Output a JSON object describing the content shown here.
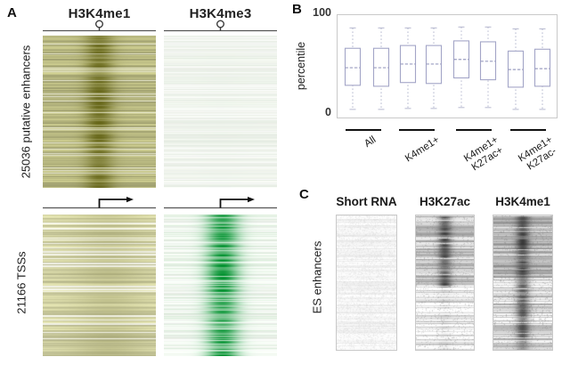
{
  "figure": {
    "background": "#ffffff"
  },
  "panels": {
    "a": {
      "label": "A",
      "columns": [
        {
          "title": "H3K4me1"
        },
        {
          "title": "H3K4me3"
        }
      ],
      "rows": [
        {
          "label": "25036 putative enhancers"
        },
        {
          "label": "21166 TSSs"
        }
      ],
      "marker_icons": [
        "center-pin-icon",
        "tss-arrow-icon"
      ],
      "heatmaps": [
        {
          "name": "h3k4me1-enhancers",
          "seed": 11,
          "bg": "#b7b780",
          "row_noise": 0.16,
          "streak": "#f6f6e8",
          "streak_prob": 0.13,
          "streak_thick": 1,
          "band_color": "#5f5f0e",
          "band_center": 0.5,
          "band_sigma": 0.09,
          "band_alpha": 0.85
        },
        {
          "name": "h3k4me3-enhancers",
          "seed": 22,
          "bg": "#f1f5ee",
          "row_noise": 0.03,
          "streak": "#ffffff",
          "streak_prob": 0.2,
          "streak_thick": 1,
          "tint": "#dfe9dd",
          "tint_prob": 0.38,
          "band_color": "#cfe0cf",
          "band_center": 0.5,
          "band_sigma": 0.15,
          "band_alpha": 0.05
        },
        {
          "name": "h3k4me1-tss",
          "seed": 33,
          "bg": "#d2d2a4",
          "row_noise": 0.12,
          "streak": "#ffffff",
          "streak_prob": 0.16,
          "streak_thick": 2,
          "tint": "#b9b98a",
          "tint_prob": 0.25,
          "band_color": "#8f8f55",
          "band_center": 0.58,
          "band_sigma": 0.22,
          "band_alpha": 0.32
        },
        {
          "name": "h3k4me3-tss",
          "seed": 44,
          "bg": "#f1f7f0",
          "row_noise": 0.06,
          "streak": "#ffffff",
          "streak_prob": 0.14,
          "streak_thick": 1,
          "tint": "#cfe7cf",
          "tint_prob": 0.3,
          "band_color": "#00912e",
          "band_center": 0.52,
          "band_sigma": 0.1,
          "band_alpha": 0.95
        }
      ]
    },
    "b": {
      "label": "B",
      "ylabel": "percentile",
      "ytick_top": "100",
      "ytick_bottom": "0",
      "group_labels": [
        [
          "All"
        ],
        [
          "K4me1+"
        ],
        [
          "K4me1+",
          "K27ac+"
        ],
        [
          "K4me1+",
          "K27ac-"
        ]
      ],
      "style": {
        "box_stroke": "#a3a5c7",
        "median_color": "#9b9dc0",
        "whisker_color": "#b6b8cf",
        "frame_border": "#c9c9c9"
      }
    },
    "c": {
      "label": "C",
      "col_titles": [
        "Short RNA",
        "H3K27ac",
        "H3K4me1"
      ],
      "row_label": "ES enhancers",
      "heatmaps": [
        {
          "name": "short-rna-es",
          "seed": 55,
          "bg": "#f7f7f7",
          "row_noise": 0.05,
          "speckle": 0.3,
          "pepper": "#d2d2d2",
          "band_color": "#c4c4c4",
          "band_center": 0.5,
          "band_sigma": 0.15,
          "band_alpha": 0.06
        },
        {
          "name": "h3k27ac-es",
          "seed": 66,
          "row_noise": 0.22,
          "streak": "#ffffff",
          "streak_prob": 0.07,
          "streak_thick": 1,
          "speckle": 0.12,
          "pepper": "#8a8a8a",
          "band_color": "#2e2e2e",
          "band_center": 0.5,
          "band_sigma": 0.08,
          "segments": [
            {
              "until": 0.53,
              "bg": "#c1c1c1",
              "band_alpha": 0.8
            },
            {
              "until": 1.0,
              "bg": "#efefef",
              "band_alpha": 0.1
            }
          ]
        },
        {
          "name": "h3k4me1-es",
          "seed": 77,
          "row_noise": 0.22,
          "streak": "#ffffff",
          "streak_prob": 0.05,
          "streak_thick": 1,
          "speckle": 0.12,
          "pepper": "#828282",
          "band_color": "#2a2a2a",
          "band_center": 0.5,
          "band_sigma": 0.08,
          "segments": [
            {
              "until": 0.46,
              "bg": "#b4b4b4",
              "band_alpha": 0.85
            },
            {
              "until": 1.0,
              "bg": "#d7d7d7",
              "band_alpha": 0.7
            }
          ]
        }
      ]
    }
  },
  "chart_data": {
    "type": "boxplot",
    "title": "",
    "xlabel": "",
    "ylabel": "percentile",
    "ylim": [
      0,
      100
    ],
    "yticks": [
      0,
      100
    ],
    "grid": false,
    "legend": "none",
    "groups": [
      "All",
      "K4me1+",
      "K4me1+ K27ac+",
      "K4me1+ K27ac-"
    ],
    "boxes_per_group": 2,
    "series": [
      {
        "group": "All",
        "whisker_low": 3,
        "q1": 29,
        "median": 48,
        "q3": 69,
        "whisker_high": 91
      },
      {
        "group": "All",
        "whisker_low": 3,
        "q1": 28,
        "median": 48,
        "q3": 69,
        "whisker_high": 91
      },
      {
        "group": "K4me1+",
        "whisker_low": 4,
        "q1": 32,
        "median": 52,
        "q3": 72,
        "whisker_high": 91
      },
      {
        "group": "K4me1+",
        "whisker_low": 4,
        "q1": 31,
        "median": 52,
        "q3": 72,
        "whisker_high": 91
      },
      {
        "group": "K4me1+ K27ac+",
        "whisker_low": 5,
        "q1": 37,
        "median": 57,
        "q3": 77,
        "whisker_high": 92
      },
      {
        "group": "K4me1+ K27ac+",
        "whisker_low": 5,
        "q1": 35,
        "median": 55,
        "q3": 76,
        "whisker_high": 92
      },
      {
        "group": "K4me1+ K27ac-",
        "whisker_low": 3,
        "q1": 27,
        "median": 46,
        "q3": 66,
        "whisker_high": 90
      },
      {
        "group": "K4me1+ K27ac-",
        "whisker_low": 3,
        "q1": 28,
        "median": 47,
        "q3": 68,
        "whisker_high": 90
      }
    ]
  }
}
